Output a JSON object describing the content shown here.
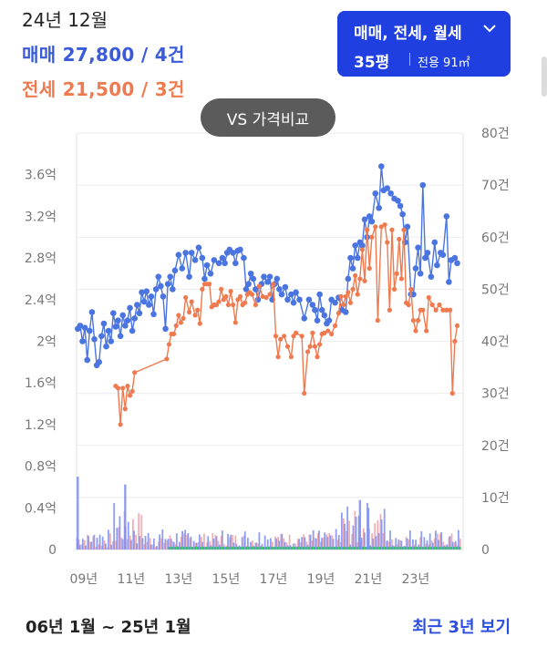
{
  "header": {
    "date": "24년 12월",
    "sale_summary": "매매 27,800 / 4건",
    "jeonse_summary": "전세 21,500 / 3건"
  },
  "filter": {
    "types": "매매, 전세, 월세",
    "pyeong": "35평",
    "area": "전용 91㎡",
    "chevron_icon": "chevron-down-icon"
  },
  "compare_button": "VS 가격비교",
  "footer": {
    "range": "06년 1월 ~ 25년 1월",
    "recent_link": "최근 3년 보기"
  },
  "colors": {
    "sale": "#4a74e0",
    "jeonse": "#ef7a4f",
    "volume_sale": "#7b8df0",
    "volume_jeonse": "#f0a0a8",
    "volume_monthly": "#36c26a",
    "accent": "#1f3fe0"
  },
  "chart_data": {
    "type": "line",
    "x_tick_labels": [
      "09년",
      "11년",
      "13년",
      "15년",
      "17년",
      "19년",
      "21년",
      "23년"
    ],
    "y_left_ticks": [
      "0",
      "0.4억",
      "0.8억",
      "1.2억",
      "1.6억",
      "2억",
      "2.4억",
      "2.8억",
      "3.2억",
      "3.6억"
    ],
    "y_left_range": [
      0,
      4.0
    ],
    "y_right_ticks": [
      "0",
      "10건",
      "20건",
      "30건",
      "40건",
      "50건",
      "60건",
      "70건",
      "80건"
    ],
    "y_right_range": [
      0,
      80
    ],
    "x_range": [
      2008.7,
      2025.0
    ],
    "grid": true,
    "series": [
      {
        "name": "매매",
        "points": [
          [
            2008.75,
            2.12
          ],
          [
            2008.85,
            2.15
          ],
          [
            2008.95,
            2.0
          ],
          [
            2009.05,
            2.13
          ],
          [
            2009.15,
            1.82
          ],
          [
            2009.25,
            2.1
          ],
          [
            2009.35,
            2.28
          ],
          [
            2009.45,
            2.02
          ],
          [
            2009.55,
            1.77
          ],
          [
            2009.65,
            1.8
          ],
          [
            2009.75,
            2.05
          ],
          [
            2009.85,
            2.17
          ],
          [
            2009.95,
            1.95
          ],
          [
            2010.05,
            2.1
          ],
          [
            2010.15,
            2.0
          ],
          [
            2010.25,
            2.27
          ],
          [
            2010.35,
            2.14
          ],
          [
            2010.45,
            2.2
          ],
          [
            2010.55,
            2.05
          ],
          [
            2010.65,
            2.25
          ],
          [
            2010.75,
            2.15
          ],
          [
            2010.85,
            2.2
          ],
          [
            2010.95,
            2.32
          ],
          [
            2011.05,
            2.1
          ],
          [
            2011.15,
            2.22
          ],
          [
            2011.25,
            2.35
          ],
          [
            2011.35,
            2.27
          ],
          [
            2011.45,
            2.47
          ],
          [
            2011.55,
            2.38
          ],
          [
            2011.65,
            2.48
          ],
          [
            2011.75,
            2.35
          ],
          [
            2011.85,
            2.43
          ],
          [
            2011.95,
            2.26
          ],
          [
            2012.05,
            2.5
          ],
          [
            2012.15,
            2.62
          ],
          [
            2012.25,
            2.53
          ],
          [
            2012.35,
            2.43
          ],
          [
            2012.45,
            2.12
          ],
          [
            2012.55,
            2.55
          ],
          [
            2012.65,
            2.62
          ],
          [
            2012.75,
            2.5
          ],
          [
            2012.85,
            2.68
          ],
          [
            2013.0,
            2.83
          ],
          [
            2013.15,
            2.7
          ],
          [
            2013.3,
            2.85
          ],
          [
            2013.45,
            2.62
          ],
          [
            2013.55,
            2.85
          ],
          [
            2013.7,
            2.78
          ],
          [
            2013.85,
            2.9
          ],
          [
            2014.0,
            2.8
          ],
          [
            2014.1,
            2.6
          ],
          [
            2014.2,
            2.73
          ],
          [
            2014.35,
            2.65
          ],
          [
            2014.5,
            2.78
          ],
          [
            2014.7,
            2.75
          ],
          [
            2014.85,
            2.8
          ],
          [
            2014.95,
            2.75
          ],
          [
            2015.05,
            2.85
          ],
          [
            2015.15,
            2.88
          ],
          [
            2015.3,
            2.85
          ],
          [
            2015.4,
            2.75
          ],
          [
            2015.5,
            2.87
          ],
          [
            2015.6,
            2.88
          ],
          [
            2015.75,
            2.8
          ],
          [
            2015.85,
            2.5
          ],
          [
            2015.95,
            2.55
          ],
          [
            2016.05,
            2.65
          ],
          [
            2016.15,
            2.6
          ],
          [
            2016.25,
            2.5
          ],
          [
            2016.35,
            2.4
          ],
          [
            2016.5,
            2.55
          ],
          [
            2016.6,
            2.62
          ],
          [
            2016.75,
            2.57
          ],
          [
            2016.85,
            2.62
          ],
          [
            2016.95,
            2.4
          ],
          [
            2017.05,
            2.55
          ],
          [
            2017.15,
            2.6
          ],
          [
            2017.25,
            2.5
          ],
          [
            2017.35,
            2.45
          ],
          [
            2017.5,
            2.52
          ],
          [
            2017.6,
            2.4
          ],
          [
            2017.75,
            2.45
          ],
          [
            2017.85,
            2.37
          ],
          [
            2017.95,
            2.47
          ],
          [
            2018.1,
            2.4
          ],
          [
            2018.3,
            2.22
          ],
          [
            2018.5,
            2.4
          ],
          [
            2018.65,
            2.35
          ],
          [
            2018.75,
            2.3
          ],
          [
            2018.85,
            2.2
          ],
          [
            2018.95,
            2.45
          ],
          [
            2019.05,
            2.3
          ],
          [
            2019.15,
            2.25
          ],
          [
            2019.25,
            2.17
          ],
          [
            2019.35,
            2.2
          ],
          [
            2019.45,
            2.4
          ],
          [
            2019.6,
            2.37
          ],
          [
            2019.75,
            2.42
          ],
          [
            2019.9,
            2.3
          ],
          [
            2020.05,
            2.28
          ],
          [
            2020.15,
            2.6
          ],
          [
            2020.25,
            2.8
          ],
          [
            2020.35,
            2.7
          ],
          [
            2020.45,
            2.92
          ],
          [
            2020.55,
            2.8
          ],
          [
            2020.65,
            2.95
          ],
          [
            2020.75,
            2.92
          ],
          [
            2020.85,
            3.17
          ],
          [
            2020.95,
            3.0
          ],
          [
            2021.05,
            3.2
          ],
          [
            2021.15,
            3.15
          ],
          [
            2021.3,
            3.42
          ],
          [
            2021.45,
            3.28
          ],
          [
            2021.55,
            3.68
          ],
          [
            2021.65,
            3.45
          ],
          [
            2021.8,
            3.47
          ],
          [
            2021.95,
            3.42
          ],
          [
            2022.1,
            3.37
          ],
          [
            2022.25,
            3.35
          ],
          [
            2022.35,
            3.3
          ],
          [
            2022.45,
            3.22
          ],
          [
            2022.55,
            2.95
          ],
          [
            2022.65,
            3.1
          ],
          [
            2022.8,
            2.45
          ],
          [
            2022.9,
            2.45
          ],
          [
            2023.0,
            2.7
          ],
          [
            2023.1,
            2.9
          ],
          [
            2023.2,
            2.65
          ],
          [
            2023.3,
            3.5
          ],
          [
            2023.4,
            2.8
          ],
          [
            2023.5,
            2.85
          ],
          [
            2023.65,
            2.62
          ],
          [
            2023.8,
            2.95
          ],
          [
            2023.9,
            2.73
          ],
          [
            2024.05,
            2.85
          ],
          [
            2024.15,
            2.83
          ],
          [
            2024.3,
            3.2
          ],
          [
            2024.4,
            2.57
          ],
          [
            2024.5,
            2.78
          ],
          [
            2024.65,
            2.8
          ],
          [
            2024.75,
            2.75
          ]
        ]
      },
      {
        "name": "전세",
        "points": [
          [
            2010.35,
            1.57
          ],
          [
            2010.45,
            1.55
          ],
          [
            2010.55,
            1.2
          ],
          [
            2010.65,
            1.55
          ],
          [
            2010.75,
            1.35
          ],
          [
            2010.85,
            1.57
          ],
          [
            2010.95,
            1.48
          ],
          [
            2011.05,
            1.52
          ],
          [
            2011.15,
            1.7
          ],
          [
            2012.5,
            1.83
          ],
          [
            2012.6,
            1.97
          ],
          [
            2012.7,
            2.07
          ],
          [
            2012.8,
            2.07
          ],
          [
            2012.9,
            2.15
          ],
          [
            2013.0,
            2.25
          ],
          [
            2013.1,
            2.18
          ],
          [
            2013.2,
            2.22
          ],
          [
            2013.3,
            2.42
          ],
          [
            2013.45,
            2.28
          ],
          [
            2013.55,
            2.38
          ],
          [
            2013.7,
            2.25
          ],
          [
            2013.8,
            2.3
          ],
          [
            2013.9,
            2.17
          ],
          [
            2014.0,
            2.5
          ],
          [
            2014.1,
            2.55
          ],
          [
            2014.2,
            2.55
          ],
          [
            2014.3,
            2.55
          ],
          [
            2014.4,
            2.33
          ],
          [
            2014.5,
            2.35
          ],
          [
            2014.6,
            2.35
          ],
          [
            2014.7,
            2.38
          ],
          [
            2014.8,
            2.5
          ],
          [
            2014.9,
            2.4
          ],
          [
            2015.0,
            2.43
          ],
          [
            2015.1,
            2.35
          ],
          [
            2015.2,
            2.48
          ],
          [
            2015.3,
            2.35
          ],
          [
            2015.4,
            2.18
          ],
          [
            2015.5,
            2.4
          ],
          [
            2015.6,
            2.43
          ],
          [
            2015.7,
            2.35
          ],
          [
            2015.8,
            2.37
          ],
          [
            2015.9,
            2.45
          ],
          [
            2016.0,
            2.47
          ],
          [
            2016.1,
            2.45
          ],
          [
            2016.25,
            2.35
          ],
          [
            2016.4,
            2.53
          ],
          [
            2016.55,
            2.43
          ],
          [
            2016.7,
            2.42
          ],
          [
            2016.85,
            2.45
          ],
          [
            2017.0,
            2.55
          ],
          [
            2017.1,
            2.05
          ],
          [
            2017.2,
            1.85
          ],
          [
            2017.3,
            2.02
          ],
          [
            2017.45,
            2.05
          ],
          [
            2017.6,
            1.95
          ],
          [
            2017.75,
            1.85
          ],
          [
            2017.85,
            2.05
          ],
          [
            2017.95,
            2.08
          ],
          [
            2018.2,
            2.05
          ],
          [
            2018.3,
            1.5
          ],
          [
            2018.45,
            1.9
          ],
          [
            2018.55,
            1.95
          ],
          [
            2018.65,
            2.08
          ],
          [
            2018.75,
            1.95
          ],
          [
            2018.85,
            1.85
          ],
          [
            2018.95,
            1.97
          ],
          [
            2019.05,
            2.07
          ],
          [
            2019.15,
            2.08
          ],
          [
            2019.3,
            2.1
          ],
          [
            2019.45,
            2.07
          ],
          [
            2019.6,
            2.15
          ],
          [
            2019.75,
            2.27
          ],
          [
            2019.85,
            2.43
          ],
          [
            2019.95,
            2.35
          ],
          [
            2020.05,
            2.43
          ],
          [
            2020.15,
            2.47
          ],
          [
            2020.25,
            2.37
          ],
          [
            2020.35,
            2.5
          ],
          [
            2020.45,
            2.63
          ],
          [
            2020.55,
            2.45
          ],
          [
            2020.65,
            2.6
          ],
          [
            2020.75,
            2.88
          ],
          [
            2020.85,
            2.58
          ],
          [
            2020.95,
            3.07
          ],
          [
            2021.05,
            2.7
          ],
          [
            2021.15,
            3.0
          ],
          [
            2021.3,
            3.1
          ],
          [
            2021.4,
            2.2
          ],
          [
            2021.55,
            3.1
          ],
          [
            2021.7,
            3.12
          ],
          [
            2021.8,
            2.95
          ],
          [
            2021.9,
            2.3
          ],
          [
            2022.0,
            3.07
          ],
          [
            2022.1,
            2.5
          ],
          [
            2022.2,
            2.65
          ],
          [
            2022.3,
            2.98
          ],
          [
            2022.4,
            2.6
          ],
          [
            2022.5,
            3.07
          ],
          [
            2022.6,
            2.37
          ],
          [
            2022.7,
            2.35
          ],
          [
            2022.8,
            2.5
          ],
          [
            2022.9,
            2.2
          ],
          [
            2023.0,
            2.1
          ],
          [
            2023.1,
            2.2
          ],
          [
            2023.2,
            2.3
          ],
          [
            2023.3,
            2.3
          ],
          [
            2023.45,
            2.1
          ],
          [
            2023.55,
            2.42
          ],
          [
            2023.7,
            2.35
          ],
          [
            2023.85,
            2.3
          ],
          [
            2024.0,
            2.35
          ],
          [
            2024.15,
            2.3
          ],
          [
            2024.3,
            2.3
          ],
          [
            2024.45,
            2.3
          ],
          [
            2024.55,
            1.5
          ],
          [
            2024.65,
            2.0
          ],
          [
            2024.75,
            2.15
          ]
        ]
      }
    ]
  }
}
